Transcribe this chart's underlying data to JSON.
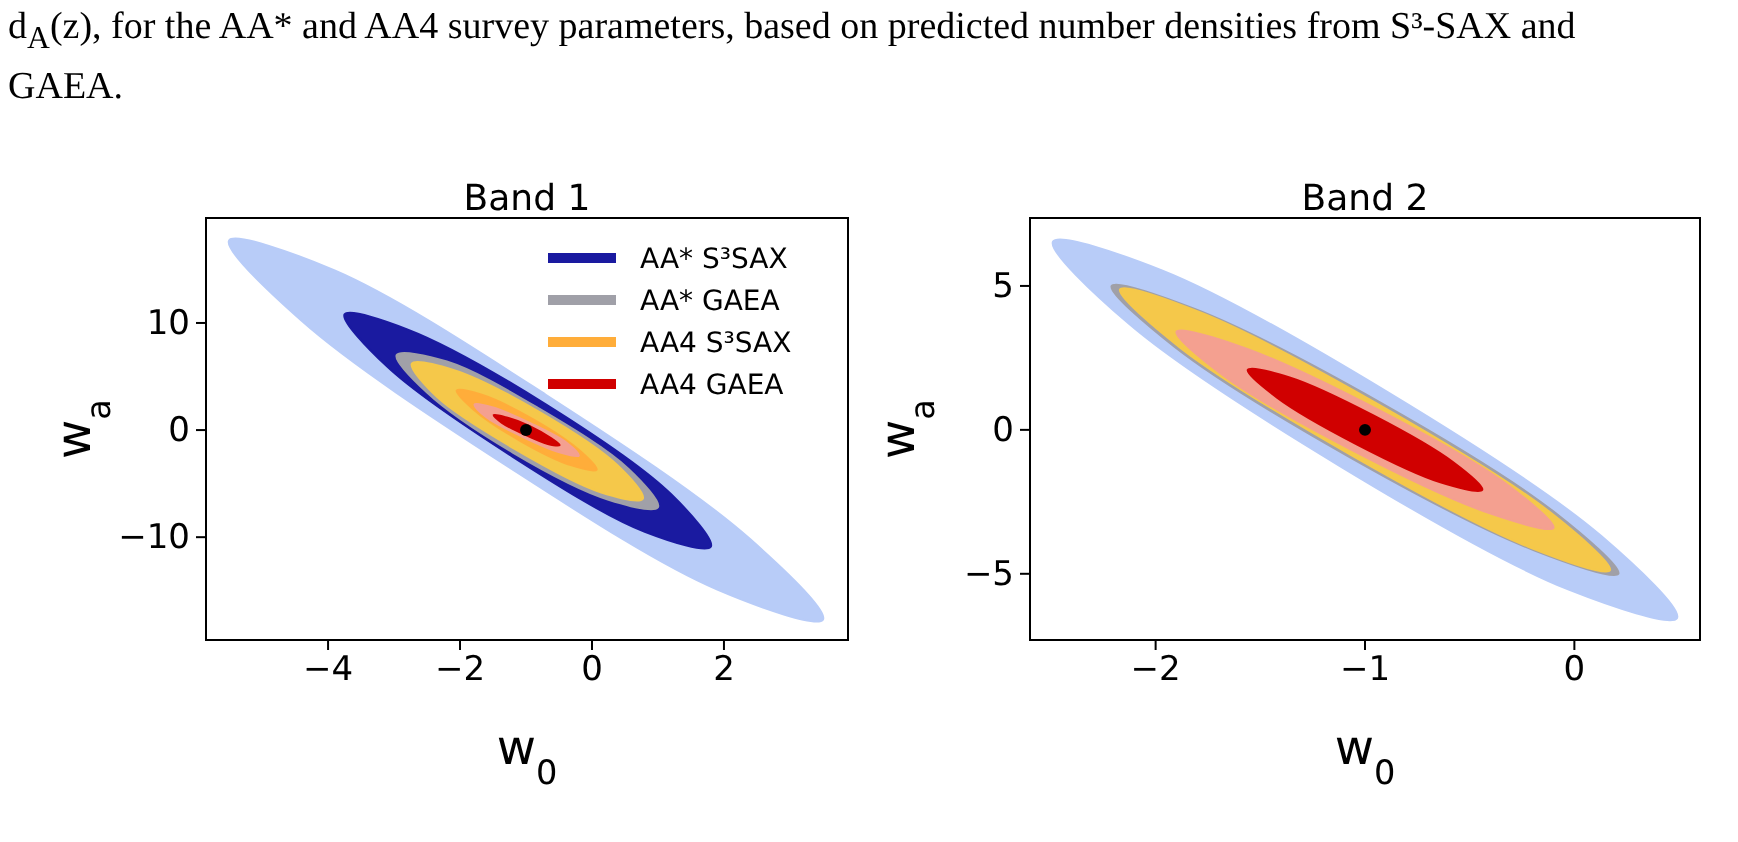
{
  "chart_data": [
    {
      "type": "area",
      "title": "Band 1",
      "xlabel": "w$_{0}$",
      "ylabel": "w$_{a}$",
      "annotations": [
        "d$_{A}$(z), for the AA* and AA4 survey parameters, based on predicted number densities from S³-SAX and GAEA."
      ],
      "xlim": [
        -5.85,
        3.88
      ],
      "ylim": [
        -19.6,
        19.8
      ],
      "xticks": [
        {
          "value": -4,
          "label": "−4"
        },
        {
          "value": -2,
          "label": "−2"
        },
        {
          "value": 0,
          "label": "0"
        },
        2
      ],
      "yticks": [
        {
          "value": -10,
          "label": "−10"
        },
        {
          "value": 0,
          "label": "0"
        },
        10
      ],
      "legend": "top right",
      "series": [
        {
          "color": "#b8ccf8",
          "x": [
            3.5,
            1.9,
            -1.3,
            -4.4,
            -5.5,
            -3.9,
            -0.7,
            2.4
          ],
          "values": [
            -17.7,
            -14.9,
            -3.3,
            10.2,
            17.7,
            14.9,
            3.3,
            -10.2
          ]
        },
        {
          "name": "AA* S³SAX",
          "color": "#1a1aa0",
          "x": [
            1.8,
            0.8,
            -1.2,
            -3.1,
            -3.75,
            -2.8,
            -0.7,
            1.2
          ],
          "values": [
            -10.9,
            -9.5,
            -2.5,
            5.9,
            10.8,
            9.4,
            2.4,
            -6
          ]
        },
        {
          "name": "AA* GAEA",
          "color": "#a0a0a8",
          "x": [
            1,
            0.25,
            -1.2,
            -2.5,
            -2.96,
            -2.2,
            -0.8,
            0.55
          ],
          "values": [
            -7.2,
            -6.5,
            -2.1,
            3.5,
            7,
            6.4,
            2,
            -3.6
          ]
        },
        {
          "color": "#f5c84a",
          "x": [
            0.77,
            0.13,
            -1.16,
            -2.35,
            -2.73,
            -2.09,
            -0.8,
            0.39
          ],
          "values": [
            -6.4,
            -5.8,
            -1.8,
            3.1,
            6.2,
            5.6,
            1.7,
            -3.3
          ]
        },
        {
          "name": "AA4 S³SAX",
          "color": "#ffad3a",
          "x": [
            0.07,
            -0.31,
            -1.09,
            -1.81,
            -2.05,
            -1.67,
            -0.89,
            -0.17
          ],
          "values": [
            -3.7,
            -3.3,
            -1,
            2,
            3.7,
            3.3,
            1,
            -2
          ]
        },
        {
          "color": "#f4a090",
          "x": [
            -0.2,
            -0.48,
            -1.06,
            -1.6,
            -1.78,
            -1.5,
            -0.92,
            -0.38
          ],
          "values": [
            -2.4,
            -2.1,
            -0.6,
            1.2,
            2.4,
            2.1,
            0.6,
            -1.2
          ]
        },
        {
          "name": "AA4 GAEA",
          "color": "#d00000",
          "x": [
            -0.49,
            -0.67,
            -1.03,
            -1.37,
            -1.49,
            -1.31,
            -0.95,
            -0.61
          ],
          "values": [
            -1.4,
            -1.3,
            -0.4,
            0.7,
            1.4,
            1.2,
            0.4,
            -0.8
          ]
        },
        {
          "type": "scatter",
          "color": "#000000",
          "x": [
            -1
          ],
          "values": [
            0
          ]
        }
      ]
    },
    {
      "type": "area",
      "title": "Band 2",
      "xlabel": "w$_{0}$",
      "ylabel": "w$_{a}$",
      "xlim": [
        -2.6,
        0.6
      ],
      "ylim": [
        -7.3,
        7.36
      ],
      "xticks": [
        {
          "value": -2,
          "label": "−2"
        },
        {
          "value": -1,
          "label": "−1"
        },
        {
          "value": 0,
          "label": "0"
        }
      ],
      "yticks": [
        {
          "value": -5,
          "label": "−5"
        },
        {
          "value": 0,
          "label": "0"
        },
        5
      ],
      "series": [
        {
          "color": "#b8ccf8",
          "x": [
            0.49,
            -0.03,
            -1.11,
            -2.13,
            -2.49,
            -1.97,
            -0.89,
            0.13
          ],
          "values": [
            -6.54,
            -5.54,
            -1.3,
            3.7,
            6.54,
            5.54,
            1.3,
            -3.7
          ]
        },
        {
          "color": "#a0a0a8",
          "x": [
            0.21,
            -0.19,
            -1.08,
            -1.91,
            -2.21,
            -1.81,
            -0.92,
            -0.09
          ],
          "values": [
            -5.0,
            -4.19,
            -0.92,
            2.89,
            5.0,
            4.19,
            0.92,
            -2.89
          ]
        },
        {
          "color": "#f5c84a",
          "x": [
            0.17,
            -0.22,
            -1.07,
            -1.88,
            -2.17,
            -1.78,
            -0.93,
            -0.12
          ],
          "values": [
            -4.88,
            -4.06,
            -0.86,
            2.84,
            4.88,
            4.06,
            0.86,
            -2.84
          ]
        },
        {
          "color": "#f4a090",
          "x": [
            -0.1,
            -0.4,
            -1.06,
            -1.68,
            -1.9,
            -1.6,
            -0.94,
            -0.32
          ],
          "values": [
            -3.41,
            -2.91,
            -0.71,
            1.91,
            3.41,
            2.91,
            0.71,
            -1.91
          ]
        },
        {
          "color": "#d00000",
          "x": [
            -0.44,
            -0.64,
            -1.04,
            -1.42,
            -1.56,
            -1.36,
            -0.96,
            -0.58
          ],
          "values": [
            -2.08,
            -1.82,
            -0.5,
            1.12,
            2.08,
            1.82,
            0.5,
            -1.12
          ]
        },
        {
          "type": "scatter",
          "color": "#000000",
          "x": [
            -1
          ],
          "values": [
            0
          ]
        }
      ]
    }
  ]
}
